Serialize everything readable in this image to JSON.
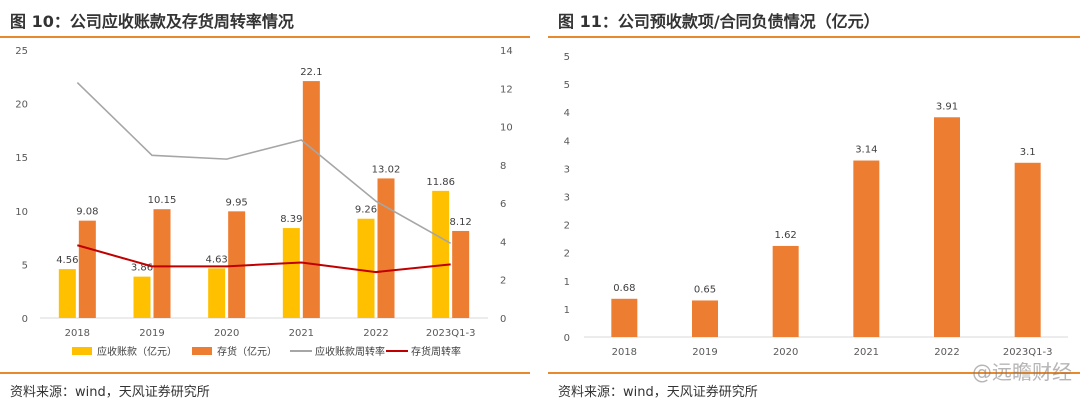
{
  "left": {
    "title": "图 10：公司应收账款及存货周转率情况",
    "source": "资料来源：wind，天风证券研究所"
  },
  "right": {
    "title": "图 11：公司预收款项/合同负债情况（亿元）",
    "source": "资料来源：wind，天风证券研究所"
  },
  "watermark": "@远瞻财经",
  "colors": {
    "receivables": "#ffc000",
    "inventory": "#ed7d31",
    "receivables_turnover": "#a6a6a6",
    "inventory_turnover": "#c00000",
    "accent_rule": "#e8892e"
  },
  "chart_data": [
    {
      "type": "bar",
      "categories": [
        "2018",
        "2019",
        "2020",
        "2021",
        "2022",
        "2023Q1-3"
      ],
      "series": [
        {
          "name": "应收账款（亿元）",
          "axis": "left",
          "values": [
            4.56,
            3.86,
            4.63,
            8.39,
            9.26,
            11.86
          ],
          "labels": [
            "4.56",
            "3.86",
            "4.63",
            "8.39",
            "9.26",
            "11.86"
          ]
        },
        {
          "name": "存货（亿元）",
          "axis": "left",
          "values": [
            9.08,
            10.15,
            9.95,
            22.1,
            13.02,
            8.12
          ],
          "labels": [
            "9.08",
            "10.15",
            "9.95",
            "22.1",
            "13.02",
            "8.12"
          ]
        },
        {
          "name": "应收账款周转率",
          "type": "line",
          "axis": "right",
          "values": [
            12.3,
            8.5,
            8.3,
            9.3,
            6.1,
            3.9
          ]
        },
        {
          "name": "存货周转率",
          "type": "line",
          "axis": "right",
          "values": [
            3.8,
            2.7,
            2.7,
            2.9,
            2.4,
            2.8
          ]
        }
      ],
      "yticks_left": [
        "0",
        "5",
        "10",
        "15",
        "20",
        "25"
      ],
      "yticks_right": [
        "0",
        "2",
        "4",
        "6",
        "8",
        "10",
        "12",
        "14"
      ],
      "ylim_left": [
        0,
        25
      ],
      "ylim_right": [
        0,
        14
      ],
      "grid": false,
      "legend": "bottom"
    },
    {
      "type": "bar",
      "categories": [
        "2018",
        "2019",
        "2020",
        "2021",
        "2022",
        "2023Q1-3"
      ],
      "values": [
        0.68,
        0.65,
        1.62,
        3.14,
        3.91,
        3.1
      ],
      "labels": [
        "0.68",
        "0.65",
        "1.62",
        "3.14",
        "3.91",
        "3.1"
      ],
      "yticks": [
        "0",
        "1",
        "1",
        "2",
        "2",
        "3",
        "3",
        "4",
        "4",
        "5",
        "5"
      ],
      "ylim": [
        0,
        5
      ],
      "grid": false,
      "legend": "none"
    }
  ]
}
